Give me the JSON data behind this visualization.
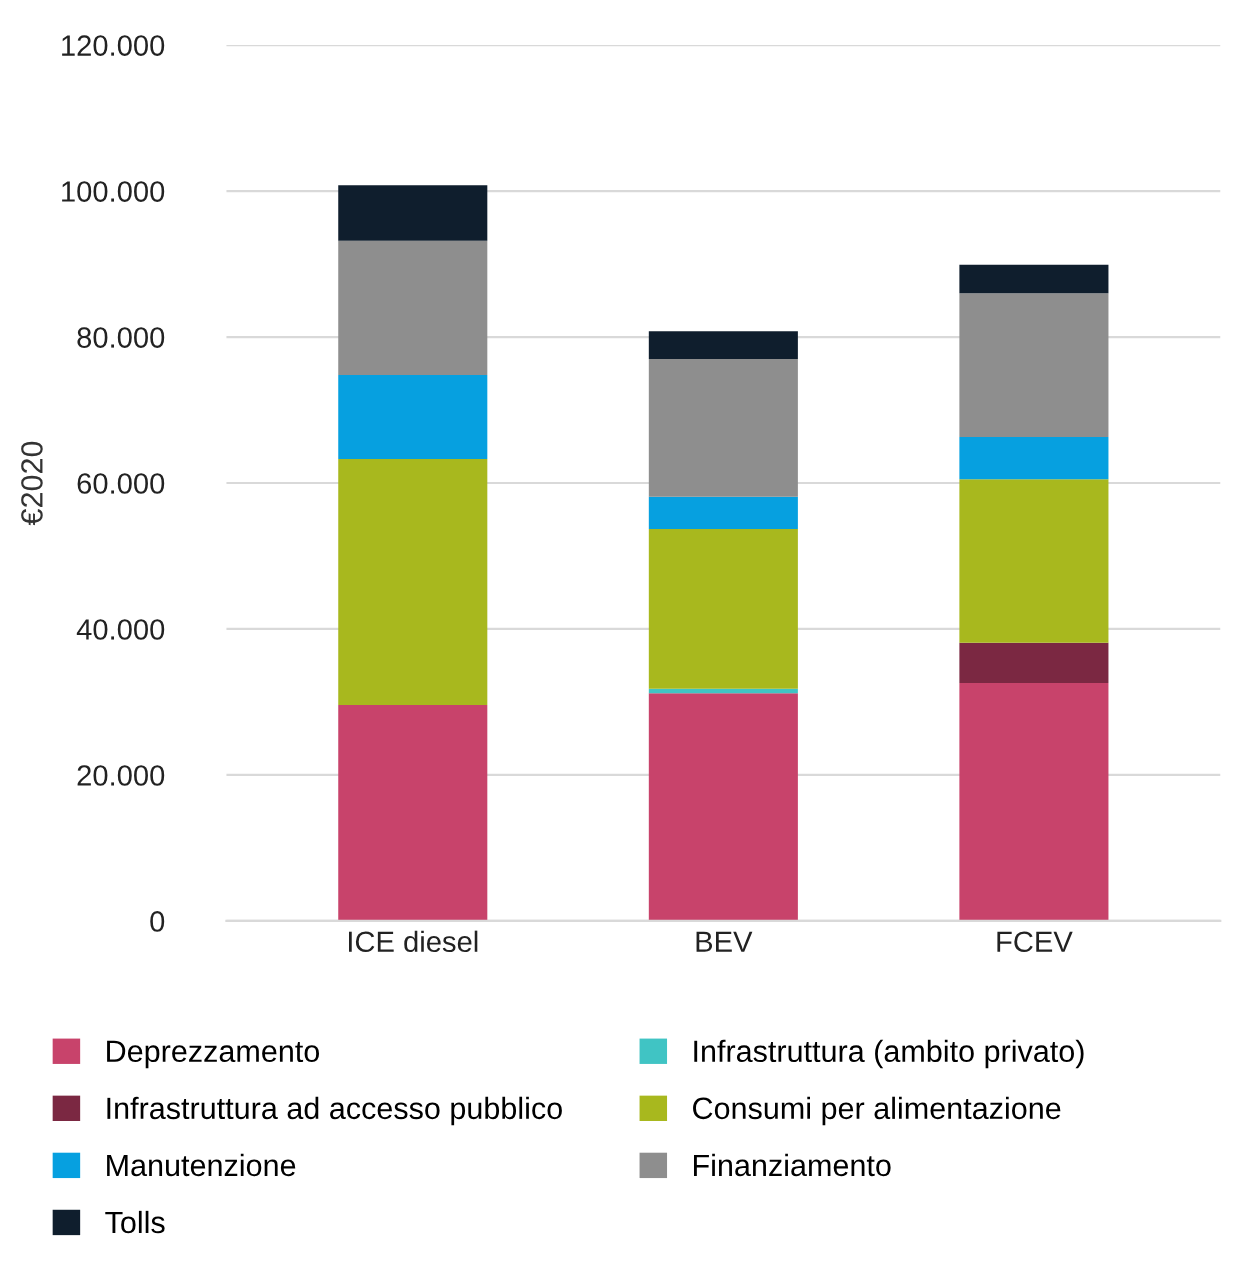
{
  "chart_data": {
    "type": "bar",
    "stacked": true,
    "ylabel": "€2020",
    "categories": [
      "ICE diesel",
      "BEV",
      "FCEV"
    ],
    "series": [
      {
        "name": "Deprezzamento",
        "color": "#c8436b",
        "values": [
          29600,
          31200,
          32600
        ]
      },
      {
        "name": "Infrastruttura (ambito privato)",
        "color": "#40c4c4",
        "values": [
          null,
          600,
          null
        ]
      },
      {
        "name": "Infrastruttura ad accesso pubblico",
        "color": "#7b2842",
        "values": [
          null,
          null,
          5500
        ]
      },
      {
        "name": "Consumi per alimentazione",
        "color": "#a8b81e",
        "values": [
          33700,
          21900,
          22400
        ]
      },
      {
        "name": "Manutenzione",
        "color": "#06a0e0",
        "values": [
          11500,
          4400,
          5800
        ]
      },
      {
        "name": "Finanziamento",
        "color": "#8e8e8e",
        "values": [
          18400,
          18900,
          19700
        ]
      },
      {
        "name": "Tolls",
        "color": "#0f1e2d",
        "values": [
          7600,
          3800,
          3900
        ]
      }
    ],
    "ylim": [
      0,
      120000
    ],
    "yticks": [
      {
        "value": 0,
        "label": "0"
      },
      {
        "value": 20000,
        "label": "20.000"
      },
      {
        "value": 40000,
        "label": "40.000"
      },
      {
        "value": 60000,
        "label": "60.000"
      },
      {
        "value": 80000,
        "label": "80.000"
      },
      {
        "value": 100000,
        "label": "100.000"
      },
      {
        "value": 120000,
        "label": "120.000"
      }
    ],
    "grid": "y",
    "legend": "bottom"
  }
}
